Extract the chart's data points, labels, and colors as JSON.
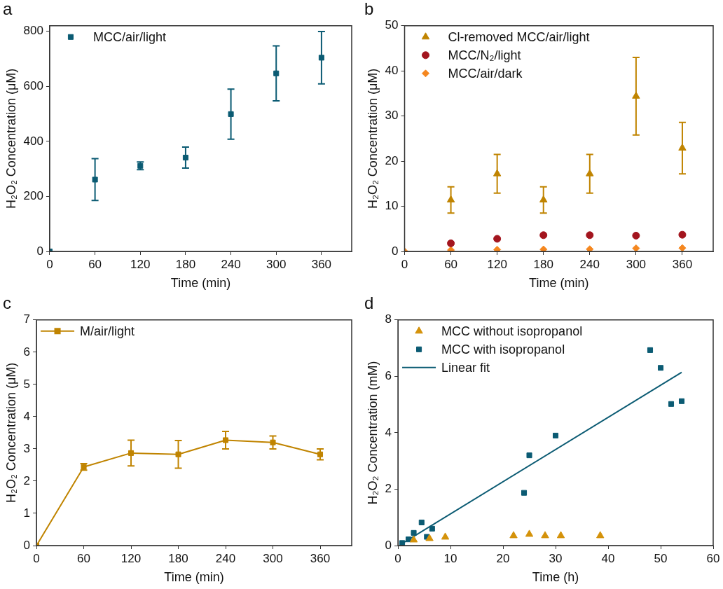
{
  "chart_data": [
    {
      "type": "scatter",
      "title": "a",
      "xlabel": "Time (min)",
      "ylabel": "H₂O₂ Concentration (μM)",
      "xlim": [
        0,
        400
      ],
      "xticks": [
        0,
        60,
        120,
        180,
        240,
        300,
        360
      ],
      "ylim": [
        0,
        820
      ],
      "yticks": [
        0,
        200,
        400,
        600,
        800
      ],
      "legend": "top left",
      "marker": "square",
      "series": [
        {
          "name": "MCC/air/light",
          "color": "#0b5b73",
          "x": [
            0,
            60,
            120,
            180,
            240,
            300,
            360
          ],
          "values": [
            0,
            261,
            311,
            341,
            499,
            647,
            704
          ],
          "errors": [
            null,
            76,
            14,
            38,
            91,
            100,
            95
          ]
        }
      ]
    },
    {
      "type": "scatter",
      "title": "b",
      "xlabel": "Time (min)",
      "ylabel": "H₂O₂ Concentration (μM)",
      "xlim": [
        0,
        400
      ],
      "xticks": [
        0,
        60,
        120,
        180,
        240,
        300,
        360
      ],
      "ylim": [
        0,
        50
      ],
      "yticks": [
        0,
        10,
        20,
        30,
        40,
        50
      ],
      "legend": "top left",
      "series": [
        {
          "name": "Cl-removed MCC/air/light",
          "color": "#c08400",
          "marker": "triangle",
          "x": [
            60,
            120,
            180,
            240,
            300,
            360
          ],
          "values": [
            11.4,
            17.2,
            11.4,
            17.2,
            34.4,
            22.9
          ],
          "errors": [
            2.9,
            4.3,
            2.9,
            4.3,
            8.6,
            5.7
          ]
        },
        {
          "name": "MCC/N₂/light",
          "color": "#a3151e",
          "marker": "circle",
          "x": [
            60,
            120,
            180,
            240,
            300,
            360
          ],
          "values": [
            1.8,
            2.8,
            3.6,
            3.6,
            3.5,
            3.7
          ]
        },
        {
          "name": "MCC/air/dark",
          "color": "#f5871f",
          "marker": "diamond",
          "x": [
            0,
            60,
            120,
            180,
            240,
            300,
            360
          ],
          "values": [
            0,
            0.3,
            0.4,
            0.45,
            0.5,
            0.7,
            0.75
          ]
        }
      ]
    },
    {
      "type": "line",
      "title": "c",
      "xlabel": "Time (min)",
      "ylabel": "H₂O₂ Concentration (μM)",
      "xlim": [
        0,
        400
      ],
      "xticks": [
        0,
        60,
        120,
        180,
        240,
        300,
        360
      ],
      "ylim": [
        0,
        7
      ],
      "yticks": [
        0,
        1,
        2,
        3,
        4,
        5,
        6,
        7
      ],
      "legend": "top left",
      "marker": "square",
      "line_style": "solid",
      "series": [
        {
          "name": "M/air/light",
          "color": "#c08400",
          "x": [
            0,
            60,
            120,
            180,
            240,
            300,
            360
          ],
          "values": [
            0,
            2.44,
            2.87,
            2.83,
            3.27,
            3.2,
            2.83
          ],
          "errors": [
            null,
            0.1,
            0.4,
            0.43,
            0.27,
            0.2,
            0.17
          ]
        }
      ]
    },
    {
      "type": "scatter",
      "title": "d",
      "xlabel": "Time (h)",
      "ylabel": "H₂O₂ Concentration (mM)",
      "xlim": [
        0,
        60
      ],
      "xticks": [
        0,
        10,
        20,
        30,
        40,
        50,
        60
      ],
      "ylim": [
        0,
        8
      ],
      "yticks": [
        0,
        2,
        4,
        6,
        8
      ],
      "legend": "top left",
      "series": [
        {
          "name": "MCC without isopropanol",
          "color": "#d4920a",
          "marker": "triangle",
          "x": [
            3,
            6,
            9,
            22,
            25,
            28,
            31,
            38.5
          ],
          "values": [
            0.2,
            0.25,
            0.3,
            0.35,
            0.4,
            0.35,
            0.35,
            0.35
          ]
        },
        {
          "name": "MCC with isopropanol",
          "color": "#0b5b73",
          "marker": "square",
          "x": [
            0.8,
            2,
            3,
            4.5,
            5.5,
            6.5,
            24,
            25,
            30,
            48,
            50,
            52,
            54
          ],
          "values": [
            0.09,
            0.22,
            0.45,
            0.82,
            0.31,
            0.6,
            1.87,
            3.2,
            3.9,
            6.93,
            6.3,
            5.02,
            5.12
          ]
        },
        {
          "name": "Linear fit",
          "type": "line",
          "color": "#0b5b73",
          "marker": "none",
          "line_style": "solid",
          "x": [
            0.5,
            54
          ],
          "values": [
            0.04,
            6.14
          ]
        }
      ]
    }
  ]
}
